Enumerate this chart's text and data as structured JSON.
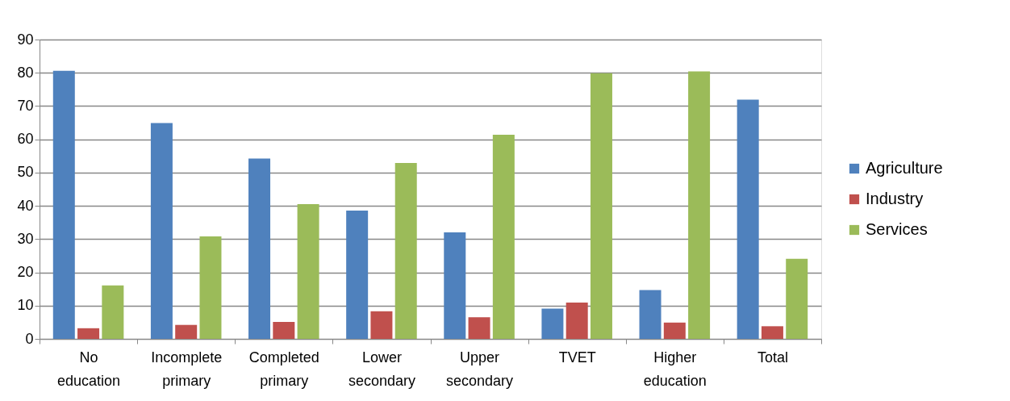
{
  "chart_data": {
    "type": "bar",
    "categories": [
      "No education",
      "Incomplete primary",
      "Completed primary",
      "Lower secondary",
      "Upper secondary",
      "TVET",
      "Higher education",
      "Total"
    ],
    "series": [
      {
        "name": "Agriculture",
        "color": "#4f81bd",
        "values": [
          80.6,
          64.9,
          54.2,
          38.6,
          32.0,
          9.1,
          14.7,
          71.9
        ]
      },
      {
        "name": "Industry",
        "color": "#c0504d",
        "values": [
          3.2,
          4.2,
          5.1,
          8.3,
          6.5,
          10.9,
          4.9,
          3.8
        ]
      },
      {
        "name": "Services",
        "color": "#9bbb59",
        "values": [
          16.1,
          30.8,
          40.5,
          52.9,
          61.4,
          79.9,
          80.4,
          24.1
        ]
      }
    ],
    "ylim": [
      0,
      90
    ],
    "yticks": [
      0,
      10,
      20,
      30,
      40,
      50,
      60,
      70,
      80,
      90
    ],
    "grid": "y",
    "legend": "right"
  }
}
